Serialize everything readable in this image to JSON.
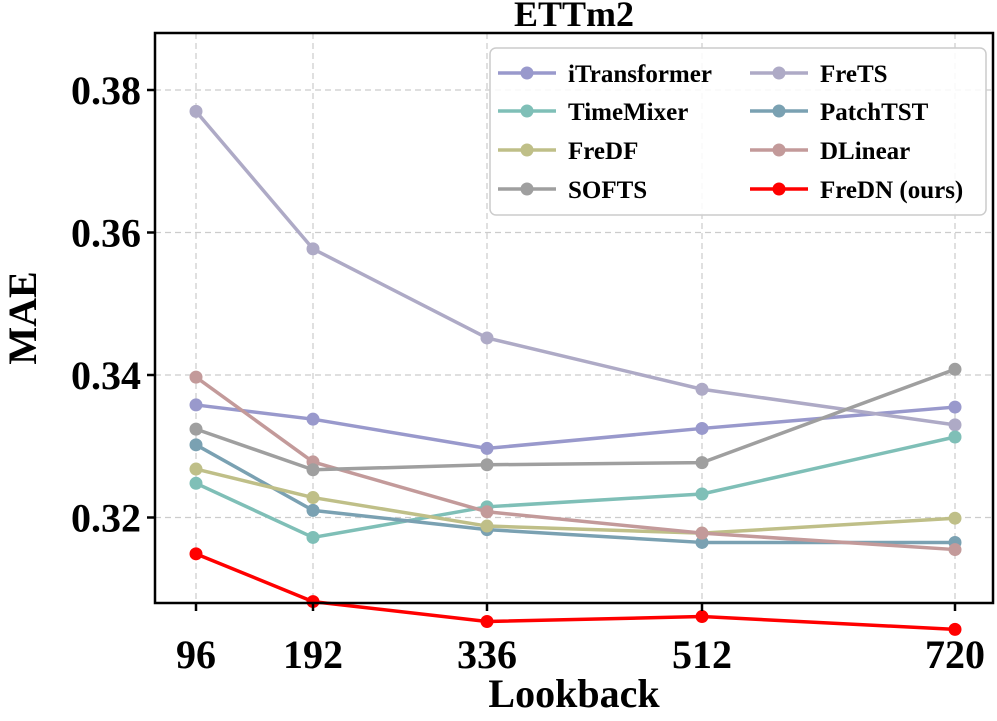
{
  "chart_data": {
    "type": "line",
    "title": "ETTm2",
    "xlabel": "Lookback",
    "ylabel": "MAE",
    "x": [
      96,
      192,
      336,
      512,
      720
    ],
    "x_tick_labels": [
      "96",
      "192",
      "336",
      "512",
      "720"
    ],
    "ylim": [
      0.308,
      0.388
    ],
    "y_ticks": [
      0.32,
      0.34,
      0.36,
      0.38
    ],
    "y_tick_labels": [
      "0.32",
      "0.34",
      "0.36",
      "0.38"
    ],
    "grid": true,
    "legend_position": "top-right",
    "series": [
      {
        "name": "iTransformer",
        "color": "#9999cc",
        "values": [
          0.3358,
          0.3338,
          0.3297,
          0.3325,
          0.3355
        ]
      },
      {
        "name": "FreTS",
        "color": "#aeaac6",
        "values": [
          0.377,
          0.3577,
          0.3452,
          0.338,
          0.333
        ]
      },
      {
        "name": "TimeMixer",
        "color": "#7fbfb7",
        "values": [
          0.3248,
          0.3172,
          0.3215,
          0.3233,
          0.3313
        ]
      },
      {
        "name": "PatchTST",
        "color": "#7aa1b2",
        "values": [
          0.3302,
          0.321,
          0.3183,
          0.3165,
          0.3165
        ]
      },
      {
        "name": "FreDF",
        "color": "#bfbf88",
        "values": [
          0.3268,
          0.3228,
          0.3188,
          0.3178,
          0.3199
        ]
      },
      {
        "name": "DLinear",
        "color": "#c39a9a",
        "values": [
          0.3397,
          0.3278,
          0.3208,
          0.3178,
          0.3155
        ]
      },
      {
        "name": "SOFTS",
        "color": "#9f9f9f",
        "values": [
          0.3324,
          0.3267,
          0.3274,
          0.3277,
          0.3408
        ]
      },
      {
        "name": "FreDN (ours)",
        "color": "#ff0000",
        "values": [
          0.3149,
          0.3082,
          0.3054,
          0.3061,
          0.3043
        ]
      }
    ]
  }
}
